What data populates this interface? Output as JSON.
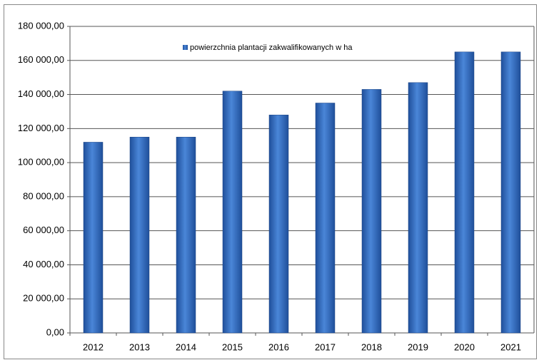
{
  "chart_data": {
    "type": "bar",
    "categories": [
      "2012",
      "2013",
      "2014",
      "2015",
      "2016",
      "2017",
      "2018",
      "2019",
      "2020",
      "2021"
    ],
    "series": [
      {
        "name": "powierzchnia plantacji zakwalifikowanych w ha",
        "color": "#3a72c4",
        "values": [
          112000,
          115000,
          115000,
          142000,
          128000,
          135000,
          143000,
          147000,
          165000,
          165000
        ]
      }
    ],
    "ylim": [
      0,
      180000
    ],
    "yticks": [
      {
        "value": 0,
        "label": "0,00"
      },
      {
        "value": 20000,
        "label": "20 000,00"
      },
      {
        "value": 40000,
        "label": "40 000,00"
      },
      {
        "value": 60000,
        "label": "60 000,00"
      },
      {
        "value": 80000,
        "label": "80 000,00"
      },
      {
        "value": 100000,
        "label": "100 000,00"
      },
      {
        "value": 120000,
        "label": "120 000,00"
      },
      {
        "value": 140000,
        "label": "140 000,00"
      },
      {
        "value": 160000,
        "label": "160 000,00"
      },
      {
        "value": 180000,
        "label": "180 000,00"
      }
    ],
    "grid": true,
    "legend": "top"
  }
}
